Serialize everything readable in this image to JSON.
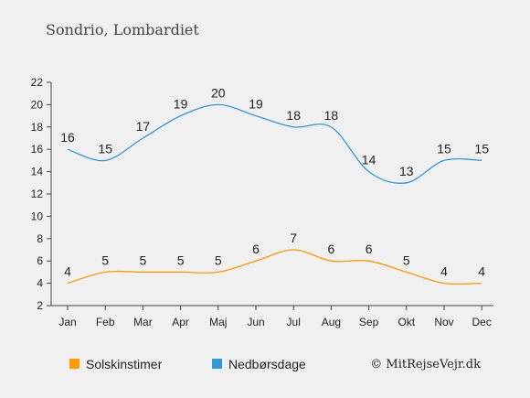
{
  "chart_data": {
    "type": "line",
    "title": "Sondrio, Lombardiet",
    "categories": [
      "Jan",
      "Feb",
      "Mar",
      "Apr",
      "Maj",
      "Jun",
      "Jul",
      "Aug",
      "Sep",
      "Okt",
      "Nov",
      "Dec"
    ],
    "ylim": [
      2,
      22
    ],
    "yticks": [
      2,
      4,
      6,
      8,
      10,
      12,
      14,
      16,
      18,
      20,
      22
    ],
    "grid": false,
    "legend_position": "bottom-left",
    "series": [
      {
        "name": "Solskinstimer",
        "color": "#ff9900",
        "values": [
          4,
          5,
          5,
          5,
          5,
          6,
          7,
          6,
          6,
          5,
          4,
          4
        ]
      },
      {
        "name": "Nedbørsdage",
        "color": "#3399dd",
        "values": [
          16,
          15,
          17,
          19,
          20,
          19,
          18,
          18,
          14,
          13,
          15,
          15
        ]
      }
    ]
  },
  "legend": {
    "sun_label": "Solskinstimer",
    "rain_label": "Nedbørsdage"
  },
  "credit": "© MitRejseVejr.dk"
}
